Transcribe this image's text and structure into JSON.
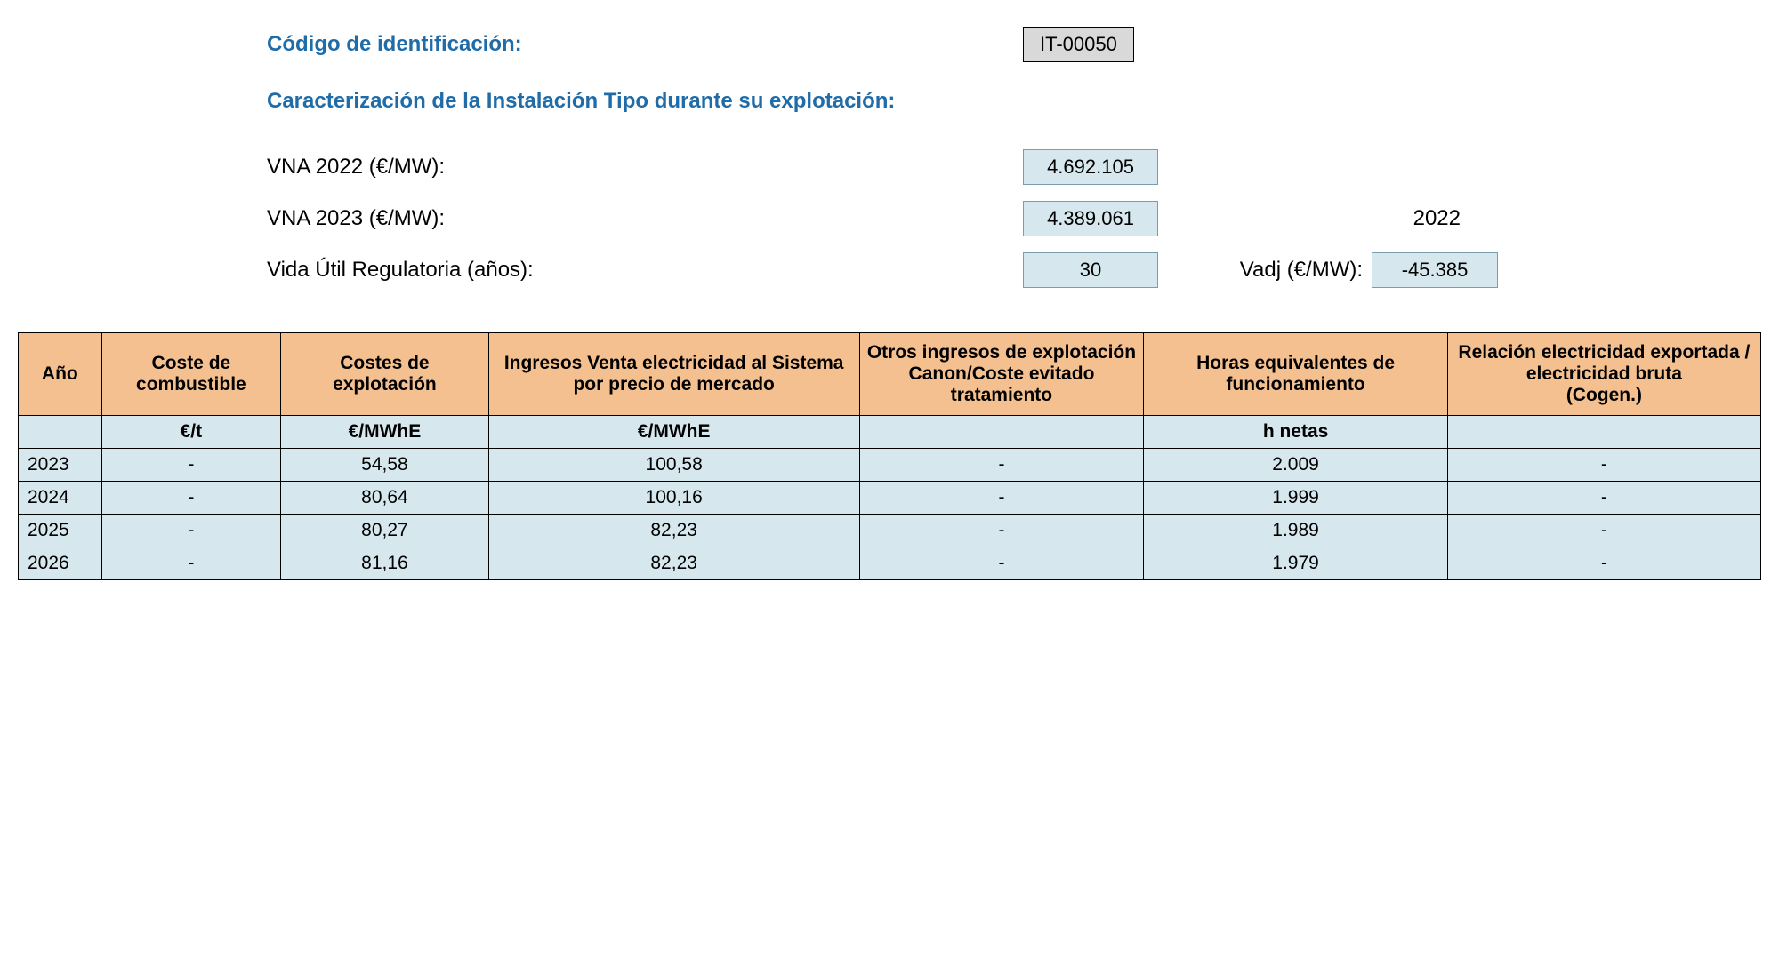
{
  "header": {
    "codigo_label": "Código de identificación:",
    "codigo_value": "IT-00050",
    "caracterizacion_label": "Caracterización de la Instalación Tipo durante su explotación:",
    "vna2022_label": "VNA 2022 (€/MW):",
    "vna2022_value": "4.692.105",
    "vna2023_label": "VNA 2023 (€/MW):",
    "vna2023_value": "4.389.061",
    "year_ref": "2022",
    "vida_label": "Vida Útil Regulatoria (años):",
    "vida_value": "30",
    "vadj_label": "Vadj (€/MW):",
    "vadj_value": "-45.385"
  },
  "table": {
    "columns": [
      "Año",
      "Coste de combustible",
      "Costes de explotación",
      "Ingresos Venta electricidad al Sistema por precio de mercado",
      "Otros ingresos de explotación Canon/Coste evitado tratamiento",
      "Horas equivalentes de funcionamiento",
      "Relación electricidad exportada / electricidad bruta\n(Cogen.)"
    ],
    "units": [
      "",
      "€/t",
      "€/MWhE",
      "€/MWhE",
      "",
      "h netas",
      ""
    ],
    "rows": [
      [
        "2023",
        "-",
        "54,58",
        "100,58",
        "-",
        "2.009",
        "-"
      ],
      [
        "2024",
        "-",
        "80,64",
        "100,16",
        "-",
        "1.999",
        "-"
      ],
      [
        "2025",
        "-",
        "80,27",
        "82,23",
        "-",
        "1.989",
        "-"
      ],
      [
        "2026",
        "-",
        "81,16",
        "82,23",
        "-",
        "1.979",
        "-"
      ]
    ]
  },
  "styling": {
    "header_bg": "#f5c090",
    "cell_bg": "#d6e8ee",
    "border_color": "#000000",
    "label_blue": "#1f6ca8",
    "code_bg": "#d9d9d9",
    "value_box_bg": "#d6e8ee",
    "value_box_border": "#7a9db0",
    "base_font_size": 21,
    "header_font_size": 24
  }
}
